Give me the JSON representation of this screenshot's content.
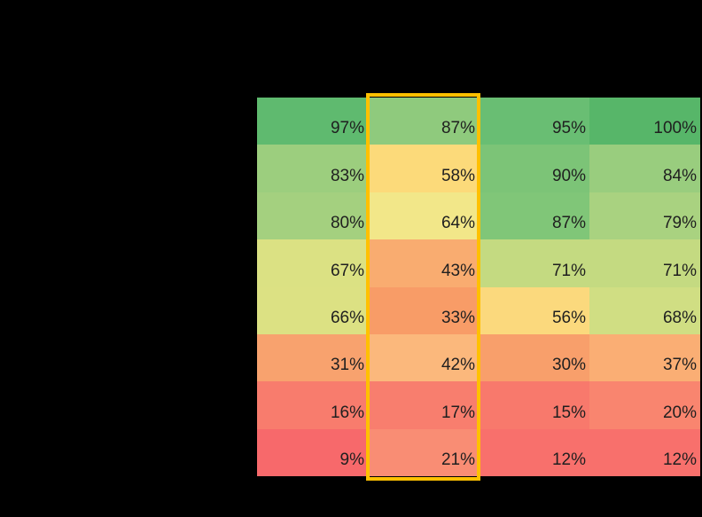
{
  "chart_data": {
    "type": "heatmap",
    "value_format": "percent",
    "n_rows": 8,
    "n_cols": 4,
    "values": [
      [
        97,
        87,
        95,
        100
      ],
      [
        83,
        58,
        90,
        84
      ],
      [
        80,
        64,
        87,
        79
      ],
      [
        67,
        43,
        71,
        71
      ],
      [
        66,
        33,
        56,
        68
      ],
      [
        31,
        42,
        30,
        37
      ],
      [
        16,
        17,
        15,
        20
      ],
      [
        9,
        21,
        12,
        12
      ]
    ],
    "highlighted_column": 2,
    "colors": {
      "background": "#000000",
      "value_text": "#1F1F1F",
      "highlight_border": "#FFC000",
      "scale_low": "#F7696B",
      "scale_mid": "#FCDA7A",
      "scale_high": "#57B669"
    },
    "cells": [
      {
        "label": "97%",
        "color": "#5FBA6F"
      },
      {
        "label": "87%",
        "color": "#8FCA7D"
      },
      {
        "label": "95%",
        "color": "#69BE73"
      },
      {
        "label": "100%",
        "color": "#57B669"
      },
      {
        "label": "83%",
        "color": "#9CCE7E"
      },
      {
        "label": "58%",
        "color": "#FCDA7A"
      },
      {
        "label": "90%",
        "color": "#7CC477"
      },
      {
        "label": "84%",
        "color": "#99CD7E"
      },
      {
        "label": "80%",
        "color": "#A4D07F"
      },
      {
        "label": "64%",
        "color": "#F2E789"
      },
      {
        "label": "87%",
        "color": "#80C678"
      },
      {
        "label": "79%",
        "color": "#A9D280"
      },
      {
        "label": "67%",
        "color": "#DBE183"
      },
      {
        "label": "43%",
        "color": "#F9AC70"
      },
      {
        "label": "71%",
        "color": "#C4DA81"
      },
      {
        "label": "71%",
        "color": "#C4DA81"
      },
      {
        "label": "66%",
        "color": "#DCE183"
      },
      {
        "label": "33%",
        "color": "#F89C67"
      },
      {
        "label": "56%",
        "color": "#FBD97D"
      },
      {
        "label": "68%",
        "color": "#D0DE83"
      },
      {
        "label": "31%",
        "color": "#F8A26E"
      },
      {
        "label": "42%",
        "color": "#FBB87C"
      },
      {
        "label": "30%",
        "color": "#F89F6B"
      },
      {
        "label": "37%",
        "color": "#FAAE74"
      },
      {
        "label": "16%",
        "color": "#F87C6D"
      },
      {
        "label": "17%",
        "color": "#F87E6E"
      },
      {
        "label": "15%",
        "color": "#F8796C"
      },
      {
        "label": "20%",
        "color": "#F9856F"
      },
      {
        "label": "9%",
        "color": "#F7696B"
      },
      {
        "label": "21%",
        "color": "#F98D74"
      },
      {
        "label": "12%",
        "color": "#F8706C"
      },
      {
        "label": "12%",
        "color": "#F8706C"
      }
    ]
  }
}
